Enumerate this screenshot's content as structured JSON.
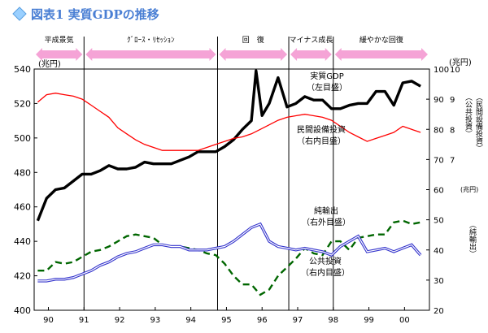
{
  "header": {
    "figure_label": "図表1 実質GDPの推移",
    "icon": "diamond-icon"
  },
  "phase_banner": [
    {
      "label": "平成景気",
      "color": "#f5a3d6"
    },
    {
      "label": "ｸﾞﾛｰｽ・ﾘｾｯｼｮﾝ",
      "color": "#f5a3d6"
    },
    {
      "label": "回　復",
      "color": "#f5a3d6"
    },
    {
      "label": "マイナス成長",
      "color": "#f5a3d6"
    },
    {
      "label": "緩やかな回復",
      "color": "#f5a3d6"
    }
  ],
  "chart_data": {
    "type": "line",
    "x_tick_labels": [
      "90",
      "91",
      "92",
      "93",
      "94",
      "95",
      "96",
      "97",
      "98",
      "99",
      "00"
    ],
    "x_range": [
      1989.6,
      2000.7
    ],
    "phase_boundaries": [
      1991.0,
      1994.75,
      1996.75,
      1998.0
    ],
    "left_axis": {
      "unit": "(兆円)",
      "range": [
        400,
        540
      ],
      "ticks": [
        400,
        420,
        440,
        460,
        480,
        500,
        520,
        540
      ]
    },
    "right_axis_1": {
      "unit": "(兆円)",
      "range": [
        2,
        10
      ],
      "tick_labels": [
        "2",
        "3",
        "4",
        "5",
        "6",
        "7",
        "8",
        "9",
        "10"
      ],
      "side_label": "（公共投資）",
      "side_label2": "（民間設備投資）"
    },
    "right_axis_2": {
      "unit": "(兆円)",
      "range": [
        20,
        100
      ],
      "tick_labels": [
        "20",
        "30",
        "40",
        "50",
        "60",
        "70",
        "80",
        "90",
        "100"
      ]
    },
    "right_axis_3": {
      "unit": "(兆円)",
      "tick_labels": [
        "2",
        "4",
        "6",
        "8",
        "1",
        "2",
        "1",
        "1",
        "1"
      ],
      "side_label": "（純輸出）"
    },
    "annotations": [
      {
        "lines": [
          "実質GDP",
          "（左目盛）"
        ]
      },
      {
        "lines": [
          "民間設備投資",
          "（右内目盛）"
        ]
      },
      {
        "lines": [
          "純輸出",
          "（右外目盛）"
        ]
      },
      {
        "lines": [
          "公共投資",
          "（右内目盛）"
        ]
      }
    ],
    "series": [
      {
        "color": "#000000",
        "style": "solid-thick",
        "axis": "left",
        "x": [
          1989.7,
          1989.95,
          1990.2,
          1990.45,
          1990.7,
          1990.95,
          1991.2,
          1991.45,
          1991.7,
          1991.95,
          1992.2,
          1992.45,
          1992.7,
          1992.95,
          1993.2,
          1993.45,
          1993.7,
          1993.95,
          1994.2,
          1994.45,
          1994.7,
          1994.95,
          1995.2,
          1995.45,
          1995.7,
          1995.83,
          1996.0,
          1996.2,
          1996.45,
          1996.7,
          1996.95,
          1997.2,
          1997.45,
          1997.7,
          1997.95,
          1998.2,
          1998.45,
          1998.7,
          1998.95,
          1999.2,
          1999.45,
          1999.7,
          1999.95,
          2000.2,
          2000.45
        ],
        "values": [
          452,
          465,
          470,
          471,
          475,
          479,
          479,
          481,
          484,
          482,
          482,
          483,
          486,
          485,
          485,
          485,
          487,
          489,
          492,
          492,
          492,
          495,
          499,
          505,
          510,
          539,
          513,
          520,
          535,
          518,
          520,
          524,
          522,
          522,
          517,
          517,
          519,
          520,
          520,
          527,
          527,
          519,
          532,
          533,
          530
        ]
      },
      {
        "color": "#ff0000",
        "style": "solid",
        "axis": "right-inner-10",
        "x": [
          1989.7,
          1989.95,
          1990.2,
          1990.45,
          1990.7,
          1990.95,
          1991.2,
          1991.45,
          1991.7,
          1991.95,
          1992.2,
          1992.45,
          1992.7,
          1992.95,
          1993.2,
          1993.45,
          1993.7,
          1993.95,
          1994.2,
          1994.45,
          1994.7,
          1994.95,
          1995.2,
          1995.45,
          1995.7,
          1995.95,
          1996.2,
          1996.45,
          1996.7,
          1996.95,
          1997.2,
          1997.45,
          1997.7,
          1997.95,
          1998.2,
          1998.45,
          1998.7,
          1998.95,
          1999.2,
          1999.45,
          1999.7,
          1999.95,
          2000.2,
          2000.45
        ],
        "values": [
          8.9,
          9.15,
          9.2,
          9.15,
          9.1,
          9.0,
          8.8,
          8.6,
          8.4,
          8.05,
          7.85,
          7.65,
          7.5,
          7.4,
          7.3,
          7.3,
          7.3,
          7.3,
          7.3,
          7.4,
          7.5,
          7.6,
          7.7,
          7.75,
          7.85,
          8.0,
          8.15,
          8.3,
          8.4,
          8.45,
          8.5,
          8.45,
          8.4,
          8.3,
          8.1,
          7.9,
          7.75,
          7.6,
          7.7,
          7.8,
          7.9,
          8.1,
          8.0,
          7.9
        ]
      },
      {
        "color": "#006600",
        "style": "dashed",
        "axis": "right-outer",
        "x": [
          1989.7,
          1989.95,
          1990.2,
          1990.45,
          1990.7,
          1990.95,
          1991.2,
          1991.45,
          1991.7,
          1991.95,
          1992.2,
          1992.45,
          1992.7,
          1992.95,
          1993.2,
          1993.45,
          1993.7,
          1993.95,
          1994.2,
          1994.45,
          1994.7,
          1994.95,
          1995.2,
          1995.45,
          1995.7,
          1995.95,
          1996.2,
          1996.45,
          1996.7,
          1996.95,
          1997.2,
          1997.45,
          1997.7,
          1997.95,
          1998.2,
          1998.45,
          1998.7,
          1998.95,
          1999.2,
          1999.45,
          1999.7,
          1999.95,
          2000.2,
          2000.45
        ],
        "values": [
          423,
          423,
          428,
          427,
          428,
          431,
          434,
          435,
          437,
          440,
          443,
          444,
          443,
          442,
          438,
          437,
          437,
          436,
          435,
          433,
          432,
          427,
          420,
          415,
          415,
          409,
          412,
          420,
          425,
          430,
          436,
          433,
          432,
          440,
          440,
          435,
          442,
          443,
          444,
          444,
          451,
          452,
          450,
          451
        ]
      },
      {
        "color": "#3333cc",
        "style": "double",
        "axis": "right-inner-100",
        "x": [
          1989.7,
          1989.95,
          1990.2,
          1990.45,
          1990.7,
          1990.95,
          1991.2,
          1991.45,
          1991.7,
          1991.95,
          1992.2,
          1992.45,
          1992.7,
          1992.95,
          1993.2,
          1993.45,
          1993.7,
          1993.95,
          1994.2,
          1994.45,
          1994.7,
          1994.95,
          1995.2,
          1995.45,
          1995.7,
          1995.95,
          1996.2,
          1996.45,
          1996.7,
          1996.95,
          1997.2,
          1997.45,
          1997.7,
          1997.95,
          1998.2,
          1998.45,
          1998.7,
          1998.95,
          1999.2,
          1999.45,
          1999.7,
          1999.95,
          2000.2,
          2000.45
        ],
        "values": [
          417,
          417,
          418,
          418,
          419,
          421,
          423,
          426,
          428,
          431,
          433,
          434,
          436,
          438,
          438,
          437,
          437,
          435,
          435,
          435,
          436,
          437,
          440,
          444,
          448,
          450,
          440,
          437,
          436,
          435,
          436,
          435,
          434,
          432,
          437,
          440,
          443,
          434,
          435,
          436,
          434,
          436,
          438,
          432
        ]
      }
    ]
  }
}
